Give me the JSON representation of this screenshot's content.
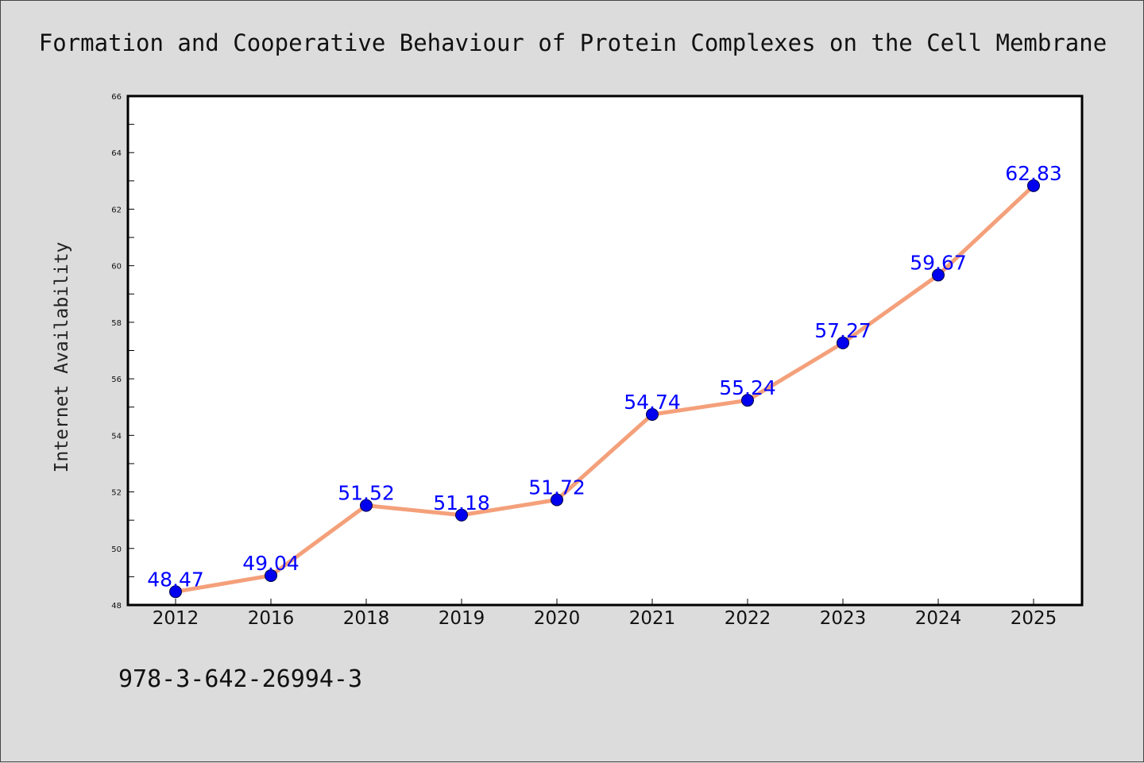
{
  "chart_data": {
    "type": "line",
    "title": "Formation and Cooperative Behaviour of Protein Complexes on the Cell Membrane",
    "xlabel": "",
    "ylabel": "Internet Availability",
    "categories": [
      "2012",
      "2016",
      "2018",
      "2019",
      "2020",
      "2021",
      "2022",
      "2023",
      "2024",
      "2025"
    ],
    "values": [
      48.47,
      49.04,
      51.52,
      51.18,
      51.72,
      54.74,
      55.24,
      57.27,
      59.67,
      62.83
    ],
    "data_labels": [
      "48.47",
      "49.04",
      "51.52",
      "51.18",
      "51.72",
      "54.74",
      "55.24",
      "57.27",
      "59.67",
      "62.83"
    ],
    "ylim": [
      48,
      66
    ],
    "yticks": [
      48,
      50,
      52,
      54,
      56,
      58,
      60,
      62,
      64,
      66
    ],
    "grid": false,
    "legend": "none",
    "colors": {
      "line": "#f4a07a",
      "marker": "#0000ee",
      "data_label": "#0000ff",
      "background": "#dcdcdc",
      "plot_area": "#ffffff"
    }
  },
  "footer": {
    "isbn": "978-3-642-26994-3"
  }
}
